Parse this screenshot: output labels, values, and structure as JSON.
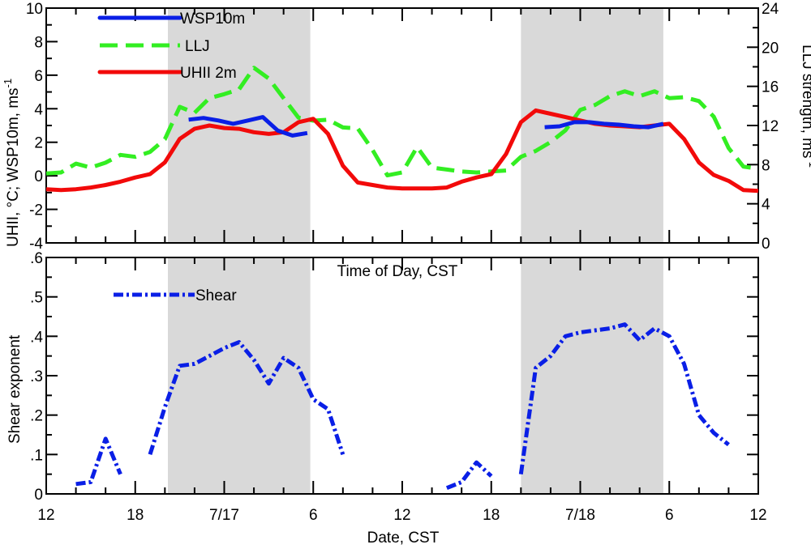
{
  "chart_data": [
    {
      "type": "line",
      "panel": "top",
      "x_unit": "hours since 7/16 12:00 CST",
      "xlim": [
        0,
        48
      ],
      "ylim": [
        -4,
        10
      ],
      "y2lim": [
        0,
        24
      ],
      "yticks": [
        "-4",
        "-2",
        "0",
        "2",
        "4",
        "6",
        "8",
        "10"
      ],
      "y2ticks": [
        "0",
        "4",
        "8",
        "12",
        "16",
        "20",
        "24"
      ],
      "ylabel": "UHII, °C; WSP10m, ms",
      "ylabel_sup": "-1",
      "y2label": "LLJ strength, ms",
      "y2label_sup": "-1",
      "xlabel": "Time of Day, CST",
      "shaded_nights": [
        [
          8.2,
          17.8
        ],
        [
          32.0,
          41.6
        ]
      ],
      "series": [
        {
          "name": "WSP10m",
          "color": "#0a1fe6",
          "dash": "solid",
          "axis": "left",
          "x": [
            9.6,
            10.6,
            11.6,
            12.6,
            13.6,
            14.6,
            15.6,
            16.6,
            17.6,
            33.6,
            34.6,
            35.6,
            36.6,
            37.6,
            38.6,
            39.6,
            40.6,
            41.6
          ],
          "values": [
            3.35,
            3.45,
            3.3,
            3.1,
            3.3,
            3.5,
            2.7,
            2.4,
            2.55,
            2.9,
            2.95,
            3.2,
            3.2,
            3.1,
            3.05,
            2.95,
            2.9,
            3.1
          ]
        },
        {
          "name": "LLJ",
          "color": "#33ee22",
          "dash": "long",
          "axis": "right",
          "x": [
            0,
            1,
            2,
            3,
            4,
            5,
            6,
            7,
            8,
            9,
            10,
            11,
            12,
            13,
            14,
            15,
            16,
            17,
            18,
            19,
            20,
            21,
            22,
            23,
            24,
            25,
            26,
            27,
            28,
            29,
            30,
            31,
            32,
            33,
            34,
            35,
            36,
            37,
            38,
            39,
            40,
            41,
            42,
            43,
            44,
            45,
            46,
            47,
            48
          ],
          "values": [
            7.1,
            7.2,
            8.1,
            7.7,
            8.2,
            9,
            8.8,
            9.3,
            10.6,
            13.9,
            13.3,
            14.8,
            15.2,
            15.7,
            17.9,
            16.8,
            14.8,
            12.8,
            12.5,
            12.6,
            11.8,
            11.7,
            9.5,
            6.9,
            7.2,
            9.8,
            7.7,
            7.5,
            7.3,
            7.2,
            7.3,
            7.4,
            8.8,
            9.4,
            10.3,
            11.5,
            13.6,
            14.1,
            15,
            15.5,
            15,
            15.5,
            14.8,
            14.9,
            14.5,
            12.9,
            9.7,
            7.8,
            7.6
          ]
        },
        {
          "name": "UHII 2m",
          "color": "#f20a0a",
          "dash": "solid",
          "axis": "left",
          "x": [
            0,
            1,
            2,
            3,
            4,
            5,
            6,
            7,
            8,
            9,
            10,
            11,
            12,
            13,
            14,
            15,
            16,
            17,
            18,
            19,
            20,
            21,
            22,
            23,
            24,
            25,
            26,
            27,
            28,
            29,
            30,
            31,
            32,
            33,
            34,
            35,
            36,
            37,
            38,
            39,
            40,
            41,
            42,
            43,
            44,
            45,
            46,
            47,
            48
          ],
          "values": [
            -0.8,
            -0.85,
            -0.8,
            -0.7,
            -0.55,
            -0.35,
            -0.1,
            0.1,
            0.8,
            2.2,
            2.8,
            3,
            2.85,
            2.8,
            2.6,
            2.5,
            2.6,
            3.2,
            3.4,
            2.5,
            0.6,
            -0.4,
            -0.55,
            -0.7,
            -0.75,
            -0.75,
            -0.75,
            -0.7,
            -0.35,
            -0.1,
            0.1,
            1.3,
            3.2,
            3.9,
            3.7,
            3.5,
            3.3,
            3.1,
            3,
            2.95,
            2.9,
            3,
            3.1,
            2.2,
            0.8,
            0.05,
            -0.3,
            -0.85,
            -0.9
          ]
        }
      ]
    },
    {
      "type": "line",
      "panel": "bottom",
      "xlim": [
        0,
        48
      ],
      "ylim": [
        0,
        0.6
      ],
      "yticks": [
        "0",
        ".1",
        ".2",
        ".3",
        ".4",
        ".5",
        ".6"
      ],
      "xticks": [
        "12",
        "18",
        "7/17",
        "6",
        "12",
        "18",
        "7/18",
        "6",
        "12"
      ],
      "ylabel": "Shear exponent",
      "xlabel": "Date, CST",
      "series": [
        {
          "name": "Shear",
          "color": "#0a1fe6",
          "dash": "dashdot",
          "segments": [
            {
              "x": [
                2,
                3,
                4,
                5
              ],
              "values": [
                0.025,
                0.03,
                0.14,
                0.05
              ]
            },
            {
              "x": [
                7,
                8,
                9,
                10,
                11,
                12,
                13,
                14,
                15,
                16,
                17,
                18,
                19,
                20
              ],
              "values": [
                0.1,
                0.22,
                0.325,
                0.33,
                0.35,
                0.37,
                0.385,
                0.34,
                0.28,
                0.345,
                0.32,
                0.24,
                0.215,
                0.1
              ]
            },
            {
              "x": [
                27,
                28,
                29,
                30
              ],
              "values": [
                0.015,
                0.03,
                0.08,
                0.045
              ]
            },
            {
              "x": [
                32,
                33,
                34,
                35,
                36,
                37,
                38,
                39,
                40,
                41,
                42,
                43,
                44,
                45,
                46
              ],
              "values": [
                0.05,
                0.32,
                0.35,
                0.4,
                0.41,
                0.415,
                0.42,
                0.43,
                0.39,
                0.42,
                0.4,
                0.33,
                0.2,
                0.155,
                0.125
              ]
            }
          ]
        }
      ]
    }
  ]
}
